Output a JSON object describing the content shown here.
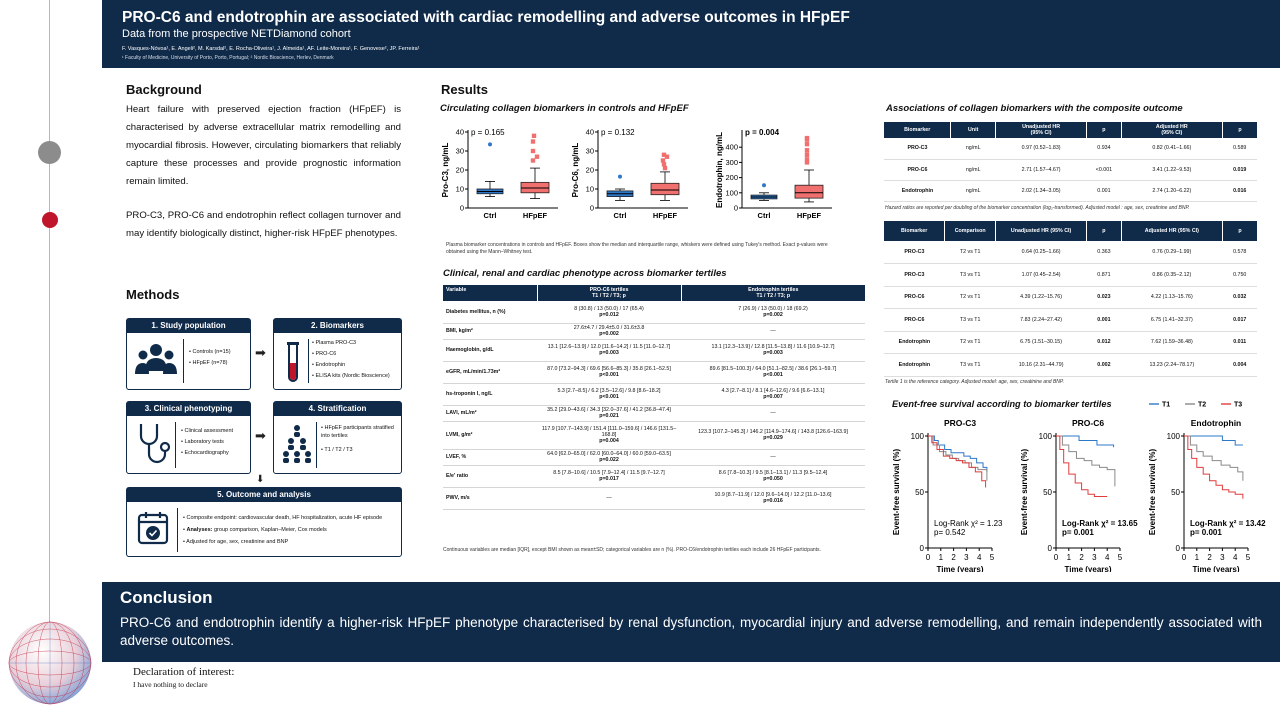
{
  "header": {
    "title": "PRO-C6 and endotrophin are associated with cardiac remodelling and adverse outcomes in HFpEF",
    "subtitle": "Data from the prospective NETDiamond cohort",
    "authors": "F. Vasques-Nóvoa¹, E. Angeli², M. Karsdal², E. Rocha-Oliveira¹, J. Almeida¹, AF. Leite-Moreira¹, F. Genovese², JP. Ferreira¹",
    "affiliations": "¹ Faculty of Medicine, University of Porto, Porto, Portugal; ² Nordic Bioscience, Herlev, Denmark"
  },
  "background": {
    "heading": "Background",
    "p1": "Heart failure with preserved ejection fraction (HFpEF) is characterised by adverse extracellular matrix remodelling and myocardial fibrosis. However, circulating biomarkers that reliably capture these processes and provide prognostic information remain limited.",
    "p2": "PRO-C3, PRO-C6 and endotrophin reflect collagen turnover and may identify biologically distinct, higher-risk HFpEF phenotypes."
  },
  "methods": {
    "heading": "Methods",
    "boxes": [
      {
        "title": "1. Study population",
        "items": [
          "Controls (n=15)",
          "HFpEF (n=78)"
        ]
      },
      {
        "title": "2. Biomarkers",
        "items": [
          "Plasma PRO-C3",
          "PRO-C6",
          "Endotrophin",
          "ELISA kits (Nordic Bioscience)"
        ]
      },
      {
        "title": "3. Clinical phenotyping",
        "items": [
          "Clinical assessment",
          "Laboratory tests",
          "Echocardiography"
        ]
      },
      {
        "title": "4. Stratification",
        "items": [
          "HFpEF participants stratified into tertiles",
          "T1 / T2 / T3"
        ]
      },
      {
        "title": "5. Outcome and analysis",
        "items": [
          {
            "bold": "",
            "text": "Composite endpoint: cardiovascular death, HF hospitalization, acute HF episode"
          },
          {
            "bold": "Analyses:",
            "text": " group comparison, Kaplan–Meier, Cox models"
          },
          {
            "bold": "",
            "text": "Adjusted for age, sex, creatinine and BNP"
          }
        ]
      }
    ]
  },
  "results": {
    "heading": "Results",
    "boxplots_title": "Circulating collagen biomarkers in controls and HFpEF",
    "boxplots_caption": "Plasma biomarker concentrations in controls and HFpEF. Boxes show the median and interquartile range, whiskers were defined using Tukey's method. Exact p-values were obtained using the Mann–Whitney test.",
    "phenotype_title": "Clinical, renal and cardiac phenotype across biomarker tertiles",
    "phenotype_footnote": "Continuous variables are median [IQR], except BMI shown as mean±SD; categorical variables are n (%). PRO-C6/endotrophin tertiles each include 26 HFpEF participants.",
    "assoc_title": "Associations of collagen biomarkers with the composite outcome",
    "assoc_footnote": "Hazard ratios are reported per doubling of the biomarker concentration (log₂-transformed). Adjusted model : age, sex, creatinine and BNP.",
    "tert_footnote": "Tertile 1 is the reference category. Adjusted model: age, sex, creatinine and BNP.",
    "km_title": "Event-free survival according to biomarker tertiles"
  },
  "phenotype_table": {
    "headers": [
      "Variable",
      "PRO-C6 tertiles",
      "T1 / T2 / T3; p",
      "Endotrophin tertiles",
      "T1 / T2 / T3; p"
    ],
    "rows": [
      {
        "var": "Diabetes mellitus, n (%)",
        "c6": "8 (30.8) / 13 (50.0) / 17 (65.4)",
        "c6p": "p=0.012",
        "etp": "7 (26.9) / 13 (50.0) / 18 (69.2)",
        "etpp": "p=0.002"
      },
      {
        "var": "BMI, kg/m²",
        "c6": "27.6±4.7 / 29.4±5.0 / 31.6±3.8",
        "c6p": "p=0.002",
        "etp": "—",
        "etpp": ""
      },
      {
        "var": "Haemoglobin, g/dL",
        "c6": "13.1 [12.6–13.9] / 12.0 [11.6–14.2] / 11.5 [11.0–12.7]",
        "c6p": "p=0.003",
        "etp": "13.1 [12.3–13.9] / 12.8 [11.5–13.8] / 11.6 [10.9–12.7]",
        "etpp": "p=0.003"
      },
      {
        "var": "eGFR, mL/min/1.73m²",
        "c6": "87.0 [73.2–94.3] / 69.6 [56.6–85.3] / 35.8 [26.1–52.5]",
        "c6p": "p<0.001",
        "etp": "89.6 [81.5–100.3] / 64.0 [51.1–82.5] / 38.6 [26.1–59.7]",
        "etpp": "p<0.001"
      },
      {
        "var": "hs-troponin I, ng/L",
        "c6": "5.3 [2.7–8.5] / 6.2 [3.5–12.6] / 9.8 [8.6–18.2]",
        "c6p": "p<0.001",
        "etp": "4.3 [2.7–8.1] / 8.1 [4.6–12.6] / 9.6 [6.6–13.1]",
        "etpp": "p=0.007"
      },
      {
        "var": "LAVI, mL/m²",
        "c6": "35.2 [29.0–43.6] / 34.3 [32.0–37.6] / 41.2 [36.8–47.4]",
        "c6p": "p=0.021",
        "etp": "—",
        "etpp": ""
      },
      {
        "var": "LVMI, g/m²",
        "c6": "117.9 [107.7–143.9] / 151.4 [111.0–159.6] / 146.6 [131.5–168.8]",
        "c6p": "p=0.004",
        "etp": "123.3 [107.2–145.3] / 146.2 [114.9–174.6] / 143.8 [126.6–163.9]",
        "etpp": "p=0.029"
      },
      {
        "var": "LVEF, %",
        "c6": "64.0 [62.0–65.0] / 62.0 [60.0–64.0] / 60.0 [59.0–63.5]",
        "c6p": "p=0.022",
        "etp": "—",
        "etpp": ""
      },
      {
        "var": "E/e' ratio",
        "c6": "8.5 [7.8–10.6] / 10.5 [7.9–12.4] / 11.5 [9.7–12.7]",
        "c6p": "p=0.017",
        "etp": "8.6 [7.8–10.3] / 9.5 [8.1–13.1] / 11.3 [9.5–12.4]",
        "etpp": "p=0.050"
      },
      {
        "var": "PWV, m/s",
        "c6": "—",
        "c6p": "",
        "etp": "10.9 [8.7–11.9] / 12.0 [9.6–14.0] / 12.2 [11.0–13.6]",
        "etpp": "p=0.016"
      }
    ]
  },
  "assoc_table": {
    "headers": [
      "Biomarker",
      "Unit",
      "Unadjusted HR",
      "(95% CI)",
      "p",
      "Adjusted HR",
      "(95% CI)",
      "p"
    ],
    "rows": [
      {
        "bm": "PRO-C3",
        "unit": "ng/mL",
        "uhr": "0.97 (0.52–1.83)",
        "up": "0.934",
        "ahr": "0.82 (0.41–1.66)",
        "ap": "0.589",
        "ap_bold": false
      },
      {
        "bm": "PRO-C6",
        "unit": "ng/mL",
        "uhr": "2.71 (1.57–4.67)",
        "up": "<0.001",
        "ahr": "3.41 (1.22–9.53)",
        "ap": "0.019",
        "ap_bold": true
      },
      {
        "bm": "Endotrophin",
        "unit": "ng/mL",
        "uhr": "2.02 (1.34–3.05)",
        "up": "0.001",
        "ahr": "2.74 (1.20–6.22)",
        "ap": "0.016",
        "ap_bold": true
      }
    ]
  },
  "tertile_table": {
    "headers": [
      "Biomarker",
      "Comparison",
      "Unadjusted HR (95% CI)",
      "p",
      "Adjusted HR (95% CI)",
      "p"
    ],
    "rows": [
      {
        "bm": "PRO-C3",
        "cmp": "T2 vs T1",
        "uhr": "0.64 (0.25–1.66)",
        "up": "0.363",
        "ahr": "0.76 (0.29–1.99)",
        "ap": "0.578",
        "ub": false,
        "ab": false
      },
      {
        "bm": "PRO-C3",
        "cmp": "T3 vs T1",
        "uhr": "1.07 (0.45–2.54)",
        "up": "0.871",
        "ahr": "0.86 (0.35–2.12)",
        "ap": "0.750",
        "ub": false,
        "ab": false
      },
      {
        "bm": "PRO-C6",
        "cmp": "T2 vs T1",
        "uhr": "4.39 (1.22–15.76)",
        "up": "0.023",
        "ahr": "4.22 (1.13–15.76)",
        "ap": "0.032",
        "ub": true,
        "ab": true
      },
      {
        "bm": "PRO-C6",
        "cmp": "T3 vs T1",
        "uhr": "7.83 (2.24–27.42)",
        "up": "0.001",
        "ahr": "6.75 (1.41–32.37)",
        "ap": "0.017",
        "ub": true,
        "ab": true
      },
      {
        "bm": "Endotrophin",
        "cmp": "T2 vs T1",
        "uhr": "6.75 (1.51–30.15)",
        "up": "0.012",
        "ahr": "7.62 (1.59–36.48)",
        "ap": "0.011",
        "ub": true,
        "ab": true
      },
      {
        "bm": "Endotrophin",
        "cmp": "T3 vs T1",
        "uhr": "10.16 (2.31–44.79)",
        "up": "0.002",
        "ahr": "13.23 (2.24–78.17)",
        "ap": "0.004",
        "ub": true,
        "ab": true
      }
    ]
  },
  "conclusion": {
    "heading": "Conclusion",
    "text": "PRO-C6 and endotrophin identify a higher-risk HFpEF phenotype characterised by renal dysfunction, myocardial injury and adverse remodelling, and remain independently associated with adverse outcomes."
  },
  "declaration": {
    "title": "Declaration of interest:",
    "text": "I have nothing to declare"
  },
  "colors": {
    "navy": "#102b4a",
    "red": "#c0162c",
    "ctrl_box": "#2e77c9",
    "hfpef_box": "#f07070",
    "t1": "#2e77c9",
    "t2": "#8a8a8a",
    "t3": "#e03c3c"
  },
  "chart_data": [
    {
      "type": "box",
      "ylabel": "Pro-C3, ng/mL",
      "ylim": [
        0,
        40
      ],
      "yticks": [
        0,
        10,
        20,
        30,
        40
      ],
      "pvalue": "p = 0.165",
      "categories": [
        "Ctrl",
        "HFpEF"
      ],
      "boxes": [
        {
          "name": "Ctrl",
          "min": 6,
          "q1": 7.5,
          "median": 8.7,
          "q3": 10,
          "max": 14,
          "outliers": [
            33.5
          ]
        },
        {
          "name": "HFpEF",
          "min": 5,
          "q1": 8,
          "median": 10.5,
          "q3": 13.5,
          "max": 21,
          "outliers": [
            25,
            27,
            30,
            35,
            38
          ]
        }
      ]
    },
    {
      "type": "box",
      "ylabel": "Pro-C6, ng/mL",
      "ylim": [
        0,
        40
      ],
      "yticks": [
        0,
        10,
        20,
        30,
        40
      ],
      "pvalue": "p = 0.132",
      "categories": [
        "Ctrl",
        "HFpEF"
      ],
      "boxes": [
        {
          "name": "Ctrl",
          "min": 4,
          "q1": 6,
          "median": 7.5,
          "q3": 9,
          "max": 10,
          "outliers": [
            16.5
          ]
        },
        {
          "name": "HFpEF",
          "min": 4,
          "q1": 7,
          "median": 9.5,
          "q3": 13,
          "max": 19,
          "outliers": [
            21,
            23,
            25,
            27,
            28
          ]
        }
      ]
    },
    {
      "type": "box",
      "ylabel": "Endotrophin, ng/mL",
      "ylim": [
        0,
        500
      ],
      "yticks": [
        0,
        100,
        200,
        300,
        400
      ],
      "pvalue": "p = 0.004",
      "categories": [
        "Ctrl",
        "HFpEF"
      ],
      "boxes": [
        {
          "name": "Ctrl",
          "min": 50,
          "q1": 60,
          "median": 72,
          "q3": 85,
          "max": 100,
          "outliers": [
            150
          ]
        },
        {
          "name": "HFpEF",
          "min": 40,
          "q1": 65,
          "median": 100,
          "q3": 150,
          "max": 250,
          "outliers": [
            300,
            320,
            350,
            380,
            420,
            450,
            460
          ]
        }
      ]
    },
    {
      "type": "line",
      "title": "PRO-C3",
      "xlabel": "Time (years)",
      "ylabel": "Event-free survival (%)",
      "xlim": [
        0,
        5
      ],
      "ylim": [
        0,
        100
      ],
      "xticks": [
        0,
        1,
        2,
        3,
        4,
        5
      ],
      "yticks": [
        0,
        50,
        100
      ],
      "annotation": [
        "Log-Rank χ² = 1.23",
        "p= 0.542"
      ],
      "annotation_bold": false,
      "series": [
        {
          "name": "T1",
          "x": [
            0,
            0.5,
            0.8,
            1.3,
            1.8,
            2.3,
            2.8,
            3.3,
            3.8,
            4.3,
            4.6
          ],
          "y": [
            100,
            96,
            92,
            88,
            85,
            85,
            82,
            80,
            76,
            72,
            68
          ]
        },
        {
          "name": "T2",
          "x": [
            0,
            0.4,
            0.9,
            1.4,
            1.9,
            2.4,
            2.9,
            3.4,
            3.9,
            4.3,
            4.6
          ],
          "y": [
            100,
            92,
            86,
            83,
            80,
            78,
            76,
            72,
            70,
            70,
            60
          ]
        },
        {
          "name": "T3",
          "x": [
            0,
            0.3,
            0.7,
            1.2,
            1.7,
            2.2,
            2.7,
            3.2,
            3.7,
            4.2,
            4.5
          ],
          "y": [
            100,
            94,
            88,
            82,
            80,
            78,
            76,
            72,
            68,
            60,
            54
          ]
        }
      ]
    },
    {
      "type": "line",
      "title": "PRO-C6",
      "xlabel": "Time (years)",
      "ylabel": "Event-free survival (%)",
      "xlim": [
        0,
        5
      ],
      "ylim": [
        0,
        100
      ],
      "xticks": [
        0,
        1,
        2,
        3,
        4,
        5
      ],
      "yticks": [
        0,
        50,
        100
      ],
      "annotation": [
        "Log-Rank χ² = 13.65",
        "p= 0.001"
      ],
      "annotation_bold": true,
      "series": [
        {
          "name": "T1",
          "x": [
            0,
            1.2,
            1.8,
            2.5,
            3.2,
            3.8,
            4.5
          ],
          "y": [
            100,
            100,
            96,
            96,
            92,
            92,
            90
          ]
        },
        {
          "name": "T2",
          "x": [
            0,
            0.5,
            1.0,
            1.6,
            2.2,
            2.8,
            3.4,
            4.0,
            4.6
          ],
          "y": [
            100,
            92,
            86,
            80,
            78,
            74,
            72,
            70,
            55
          ]
        },
        {
          "name": "T3",
          "x": [
            0,
            0.3,
            0.6,
            1.0,
            1.5,
            2.0,
            2.5,
            3.0,
            4.0
          ],
          "y": [
            100,
            88,
            76,
            66,
            58,
            52,
            48,
            46,
            46
          ]
        }
      ]
    },
    {
      "type": "line",
      "title": "Endotrophin",
      "xlabel": "Time (years)",
      "ylabel": "Event-free survival (%)",
      "xlim": [
        0,
        5
      ],
      "ylim": [
        0,
        100
      ],
      "xticks": [
        0,
        1,
        2,
        3,
        4,
        5
      ],
      "yticks": [
        0,
        50,
        100
      ],
      "annotation": [
        "Log-Rank χ² = 13.42",
        "p= 0.001"
      ],
      "annotation_bold": true,
      "series": [
        {
          "name": "T1",
          "x": [
            0,
            2.0,
            3.0,
            4.0,
            4.6
          ],
          "y": [
            100,
            100,
            96,
            92,
            92
          ]
        },
        {
          "name": "T2",
          "x": [
            0,
            0.5,
            1.0,
            1.5,
            2.2,
            2.9,
            3.6,
            4.2,
            4.6
          ],
          "y": [
            100,
            92,
            86,
            82,
            78,
            74,
            72,
            68,
            60
          ]
        },
        {
          "name": "T3",
          "x": [
            0,
            0.3,
            0.6,
            1.0,
            1.5,
            2.0,
            2.5,
            3.0,
            3.5,
            4.0,
            4.6
          ],
          "y": [
            100,
            88,
            80,
            72,
            66,
            60,
            56,
            52,
            50,
            48,
            44
          ]
        }
      ]
    }
  ],
  "km_legend": [
    "T1",
    "T2",
    "T3"
  ]
}
